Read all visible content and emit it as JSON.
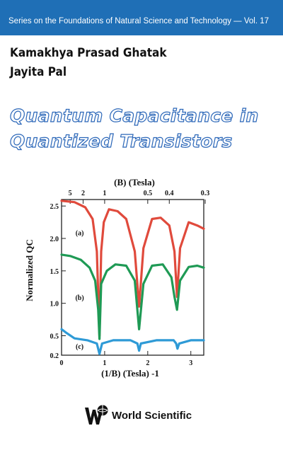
{
  "cover": {
    "series": "Series on the Foundations of Natural Science and Technology — Vol. 17",
    "authors": [
      "Kamakhya Prasad Ghatak",
      "Jayita Pal"
    ],
    "title_lines": [
      "Quantum Capacitance in",
      "Quantized Transistors"
    ],
    "publisher": "World Scientific"
  },
  "colors": {
    "bar": "#1f6fb6",
    "title_outline": "#2a66b8"
  },
  "chart_data": {
    "type": "line",
    "xlabel": "(1/B) (Tesla) -1",
    "x2label": "(B) (Tesla)",
    "ylabel": "Normalized QC",
    "xlim": [
      0,
      3.3
    ],
    "ylim": [
      0.2,
      2.6
    ],
    "x_ticks": [
      "0",
      "1",
      "2",
      "3"
    ],
    "x2_ticks": [
      "5",
      "2",
      "1",
      "0.5",
      "0.4",
      "0.3"
    ],
    "y_ticks": [
      "0.2",
      "0.5",
      "1.0",
      "1.5",
      "2.0",
      "2.5"
    ],
    "series": [
      {
        "name": "(a)",
        "color": "#e04a3c",
        "x": [
          0.0,
          0.3,
          0.55,
          0.72,
          0.82,
          0.88,
          0.92,
          0.98,
          1.1,
          1.3,
          1.5,
          1.7,
          1.8,
          1.9,
          2.1,
          2.3,
          2.5,
          2.62,
          2.68,
          2.75,
          2.95,
          3.15,
          3.3
        ],
        "y": [
          2.58,
          2.56,
          2.48,
          2.3,
          1.8,
          0.5,
          1.8,
          2.25,
          2.45,
          2.42,
          2.3,
          1.8,
          0.95,
          1.85,
          2.3,
          2.32,
          2.2,
          1.8,
          1.1,
          1.85,
          2.25,
          2.2,
          2.15
        ]
      },
      {
        "name": "(b)",
        "color": "#1f9a55",
        "x": [
          0.0,
          0.2,
          0.45,
          0.65,
          0.78,
          0.85,
          0.88,
          0.92,
          1.05,
          1.25,
          1.5,
          1.7,
          1.8,
          1.9,
          2.1,
          2.35,
          2.55,
          2.62,
          2.68,
          2.75,
          2.95,
          3.15,
          3.3
        ],
        "y": [
          1.75,
          1.73,
          1.67,
          1.55,
          1.35,
          0.9,
          0.45,
          1.3,
          1.5,
          1.6,
          1.58,
          1.35,
          0.6,
          1.3,
          1.58,
          1.6,
          1.4,
          1.1,
          0.9,
          1.35,
          1.56,
          1.58,
          1.55
        ]
      },
      {
        "name": "(c)",
        "color": "#2e9ad6",
        "x": [
          0.0,
          0.1,
          0.3,
          0.6,
          0.82,
          0.88,
          0.94,
          1.2,
          1.6,
          1.76,
          1.8,
          1.84,
          2.2,
          2.6,
          2.66,
          2.69,
          2.73,
          3.0,
          3.3
        ],
        "y": [
          0.6,
          0.55,
          0.46,
          0.43,
          0.38,
          0.22,
          0.38,
          0.43,
          0.43,
          0.38,
          0.27,
          0.38,
          0.43,
          0.43,
          0.38,
          0.3,
          0.38,
          0.43,
          0.43
        ]
      }
    ]
  }
}
